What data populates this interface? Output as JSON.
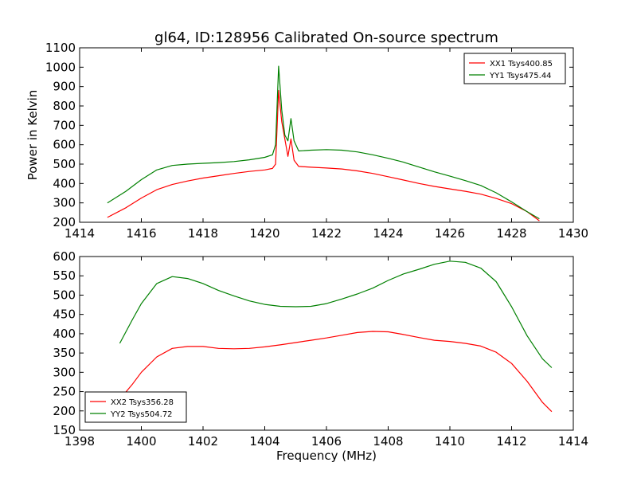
{
  "figure": {
    "title": "gl64, ID:128956 Calibrated On-source spectrum",
    "xlabel": "Frequency (MHz)"
  },
  "chart_data": [
    {
      "type": "line",
      "title": "gl64, ID:128956 Calibrated On-source spectrum",
      "xlabel": "",
      "ylabel": "Power in Kelvin",
      "xlim": [
        1414,
        1430
      ],
      "ylim": [
        200,
        1100
      ],
      "xticks": [
        1414,
        1416,
        1418,
        1420,
        1422,
        1424,
        1426,
        1428,
        1430
      ],
      "yticks": [
        200,
        300,
        400,
        500,
        600,
        700,
        800,
        900,
        1000,
        1100
      ],
      "grid": false,
      "legend_position": "top-right",
      "series": [
        {
          "name": "XX1 Tsys400.85",
          "color": "#ff0000",
          "points": [
            [
              1414.9,
              225
            ],
            [
              1415.5,
              275
            ],
            [
              1416,
              325
            ],
            [
              1416.5,
              368
            ],
            [
              1417,
              395
            ],
            [
              1417.5,
              413
            ],
            [
              1418,
              428
            ],
            [
              1418.5,
              440
            ],
            [
              1419,
              452
            ],
            [
              1419.5,
              462
            ],
            [
              1420,
              470
            ],
            [
              1420.25,
              478
            ],
            [
              1420.35,
              500
            ],
            [
              1420.45,
              880
            ],
            [
              1420.55,
              720
            ],
            [
              1420.65,
              630
            ],
            [
              1420.75,
              540
            ],
            [
              1420.85,
              630
            ],
            [
              1420.95,
              520
            ],
            [
              1421.1,
              488
            ],
            [
              1421.5,
              484
            ],
            [
              1422,
              480
            ],
            [
              1422.5,
              475
            ],
            [
              1423,
              465
            ],
            [
              1423.5,
              452
            ],
            [
              1424,
              435
            ],
            [
              1424.5,
              418
            ],
            [
              1425,
              400
            ],
            [
              1425.5,
              385
            ],
            [
              1426,
              372
            ],
            [
              1426.5,
              360
            ],
            [
              1427,
              345
            ],
            [
              1427.5,
              323
            ],
            [
              1428,
              296
            ],
            [
              1428.5,
              255
            ],
            [
              1428.9,
              208
            ]
          ]
        },
        {
          "name": "YY1 Tsys475.44",
          "color": "#008000",
          "points": [
            [
              1414.9,
              300
            ],
            [
              1415.5,
              360
            ],
            [
              1416,
              420
            ],
            [
              1416.5,
              470
            ],
            [
              1417,
              493
            ],
            [
              1417.5,
              500
            ],
            [
              1418,
              504
            ],
            [
              1418.5,
              508
            ],
            [
              1419,
              513
            ],
            [
              1419.5,
              522
            ],
            [
              1420,
              535
            ],
            [
              1420.25,
              548
            ],
            [
              1420.35,
              600
            ],
            [
              1420.45,
              1005
            ],
            [
              1420.55,
              780
            ],
            [
              1420.65,
              650
            ],
            [
              1420.75,
              620
            ],
            [
              1420.85,
              735
            ],
            [
              1420.95,
              620
            ],
            [
              1421.1,
              568
            ],
            [
              1421.5,
              572
            ],
            [
              1422,
              575
            ],
            [
              1422.5,
              572
            ],
            [
              1423,
              563
            ],
            [
              1423.5,
              548
            ],
            [
              1424,
              530
            ],
            [
              1424.5,
              510
            ],
            [
              1425,
              485
            ],
            [
              1425.5,
              460
            ],
            [
              1426,
              438
            ],
            [
              1426.5,
              415
            ],
            [
              1427,
              390
            ],
            [
              1427.5,
              352
            ],
            [
              1428,
              305
            ],
            [
              1428.5,
              255
            ],
            [
              1428.9,
              218
            ]
          ]
        }
      ]
    },
    {
      "type": "line",
      "title": "",
      "xlabel": "Frequency (MHz)",
      "ylabel": "",
      "xlim": [
        1398,
        1414
      ],
      "ylim": [
        150,
        600
      ],
      "xticks": [
        1398,
        1400,
        1402,
        1404,
        1406,
        1408,
        1410,
        1412,
        1414
      ],
      "yticks": [
        150,
        200,
        250,
        300,
        350,
        400,
        450,
        500,
        550,
        600
      ],
      "grid": false,
      "legend_position": "bottom-left",
      "series": [
        {
          "name": "XX2 Tsys356.28",
          "color": "#ff0000",
          "points": [
            [
              1399.3,
              230
            ],
            [
              1399.7,
              268
            ],
            [
              1400,
              300
            ],
            [
              1400.5,
              340
            ],
            [
              1401,
              362
            ],
            [
              1401.5,
              367
            ],
            [
              1402,
              367
            ],
            [
              1402.5,
              362
            ],
            [
              1403,
              361
            ],
            [
              1403.5,
              362
            ],
            [
              1404,
              366
            ],
            [
              1404.5,
              371
            ],
            [
              1405,
              377
            ],
            [
              1405.5,
              383
            ],
            [
              1406,
              389
            ],
            [
              1406.5,
              396
            ],
            [
              1407,
              403
            ],
            [
              1407.5,
              406
            ],
            [
              1408,
              405
            ],
            [
              1408.5,
              398
            ],
            [
              1409,
              390
            ],
            [
              1409.5,
              383
            ],
            [
              1410,
              380
            ],
            [
              1410.5,
              375
            ],
            [
              1411,
              368
            ],
            [
              1411.5,
              352
            ],
            [
              1412,
              323
            ],
            [
              1412.5,
              277
            ],
            [
              1413,
              222
            ],
            [
              1413.3,
              198
            ]
          ]
        },
        {
          "name": "YY2 Tsys504.72",
          "color": "#008000",
          "points": [
            [
              1399.3,
              375
            ],
            [
              1399.7,
              435
            ],
            [
              1400,
              478
            ],
            [
              1400.5,
              530
            ],
            [
              1401,
              548
            ],
            [
              1401.5,
              543
            ],
            [
              1402,
              530
            ],
            [
              1402.5,
              512
            ],
            [
              1403,
              498
            ],
            [
              1403.5,
              485
            ],
            [
              1404,
              476
            ],
            [
              1404.5,
              471
            ],
            [
              1405,
              470
            ],
            [
              1405.5,
              471
            ],
            [
              1406,
              478
            ],
            [
              1406.5,
              490
            ],
            [
              1407,
              503
            ],
            [
              1407.5,
              518
            ],
            [
              1408,
              538
            ],
            [
              1408.5,
              555
            ],
            [
              1409,
              567
            ],
            [
              1409.5,
              580
            ],
            [
              1410,
              588
            ],
            [
              1410.5,
              585
            ],
            [
              1411,
              570
            ],
            [
              1411.5,
              535
            ],
            [
              1412,
              470
            ],
            [
              1412.5,
              395
            ],
            [
              1413,
              335
            ],
            [
              1413.3,
              312
            ]
          ]
        }
      ]
    }
  ]
}
